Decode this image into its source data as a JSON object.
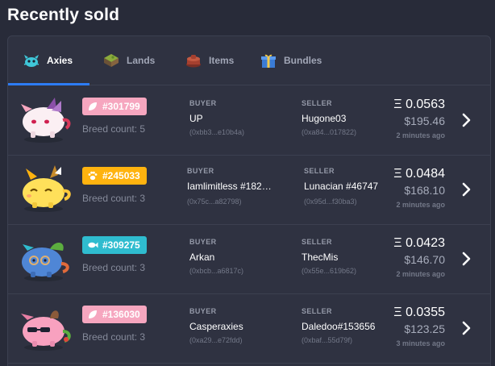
{
  "page_title": "Recently sold",
  "tabs": [
    {
      "label": "Axies",
      "icon": "axie-icon",
      "active": true
    },
    {
      "label": "Lands",
      "icon": "land-icon",
      "active": false
    },
    {
      "label": "Items",
      "icon": "item-icon",
      "active": false
    },
    {
      "label": "Bundles",
      "icon": "bundle-icon",
      "active": false
    }
  ],
  "labels": {
    "buyer": "BUYER",
    "seller": "SELLER"
  },
  "colors": {
    "plant": "#f6a6bf",
    "beast": "#ffb30f",
    "aquatic": "#2fbccf",
    "accent": "#2d7cf3"
  },
  "sales": [
    {
      "id": "#301799",
      "class": "plant",
      "class_icon": "leaf-icon",
      "breed_count": "Breed count: 5",
      "buyer_name": "UP",
      "buyer_addr": "(0xbb3...e10b4a)",
      "seller_name": "Hugone03",
      "seller_addr": "(0xa84...017822)",
      "price_eth": "Ξ 0.0563",
      "price_usd": "$195.46",
      "time": "2 minutes ago"
    },
    {
      "id": "#245033",
      "class": "beast",
      "class_icon": "paw-icon",
      "breed_count": "Breed count: 3",
      "buyer_name": "Iamlimitless #182…",
      "buyer_addr": "(0x75c...a82798)",
      "seller_name": "Lunacian #46747",
      "seller_addr": "(0x95d...f30ba3)",
      "price_eth": "Ξ 0.0484",
      "price_usd": "$168.10",
      "time": "2 minutes ago"
    },
    {
      "id": "#309275",
      "class": "aquatic",
      "class_icon": "fish-icon",
      "breed_count": "Breed count: 3",
      "buyer_name": "Arkan",
      "buyer_addr": "(0xbcb...a6817c)",
      "seller_name": "ThecMis",
      "seller_addr": "(0x55e...619b62)",
      "price_eth": "Ξ 0.0423",
      "price_usd": "$146.70",
      "time": "2 minutes ago"
    },
    {
      "id": "#136030",
      "class": "plant",
      "class_icon": "leaf-icon",
      "breed_count": "Breed count: 3",
      "buyer_name": "Casperaxies",
      "buyer_addr": "(0xa29...e72fdd)",
      "seller_name": "Daledoo#153656",
      "seller_addr": "(0xbaf...55d79f)",
      "price_eth": "Ξ 0.0355",
      "price_usd": "$123.25",
      "time": "3 minutes ago"
    }
  ]
}
